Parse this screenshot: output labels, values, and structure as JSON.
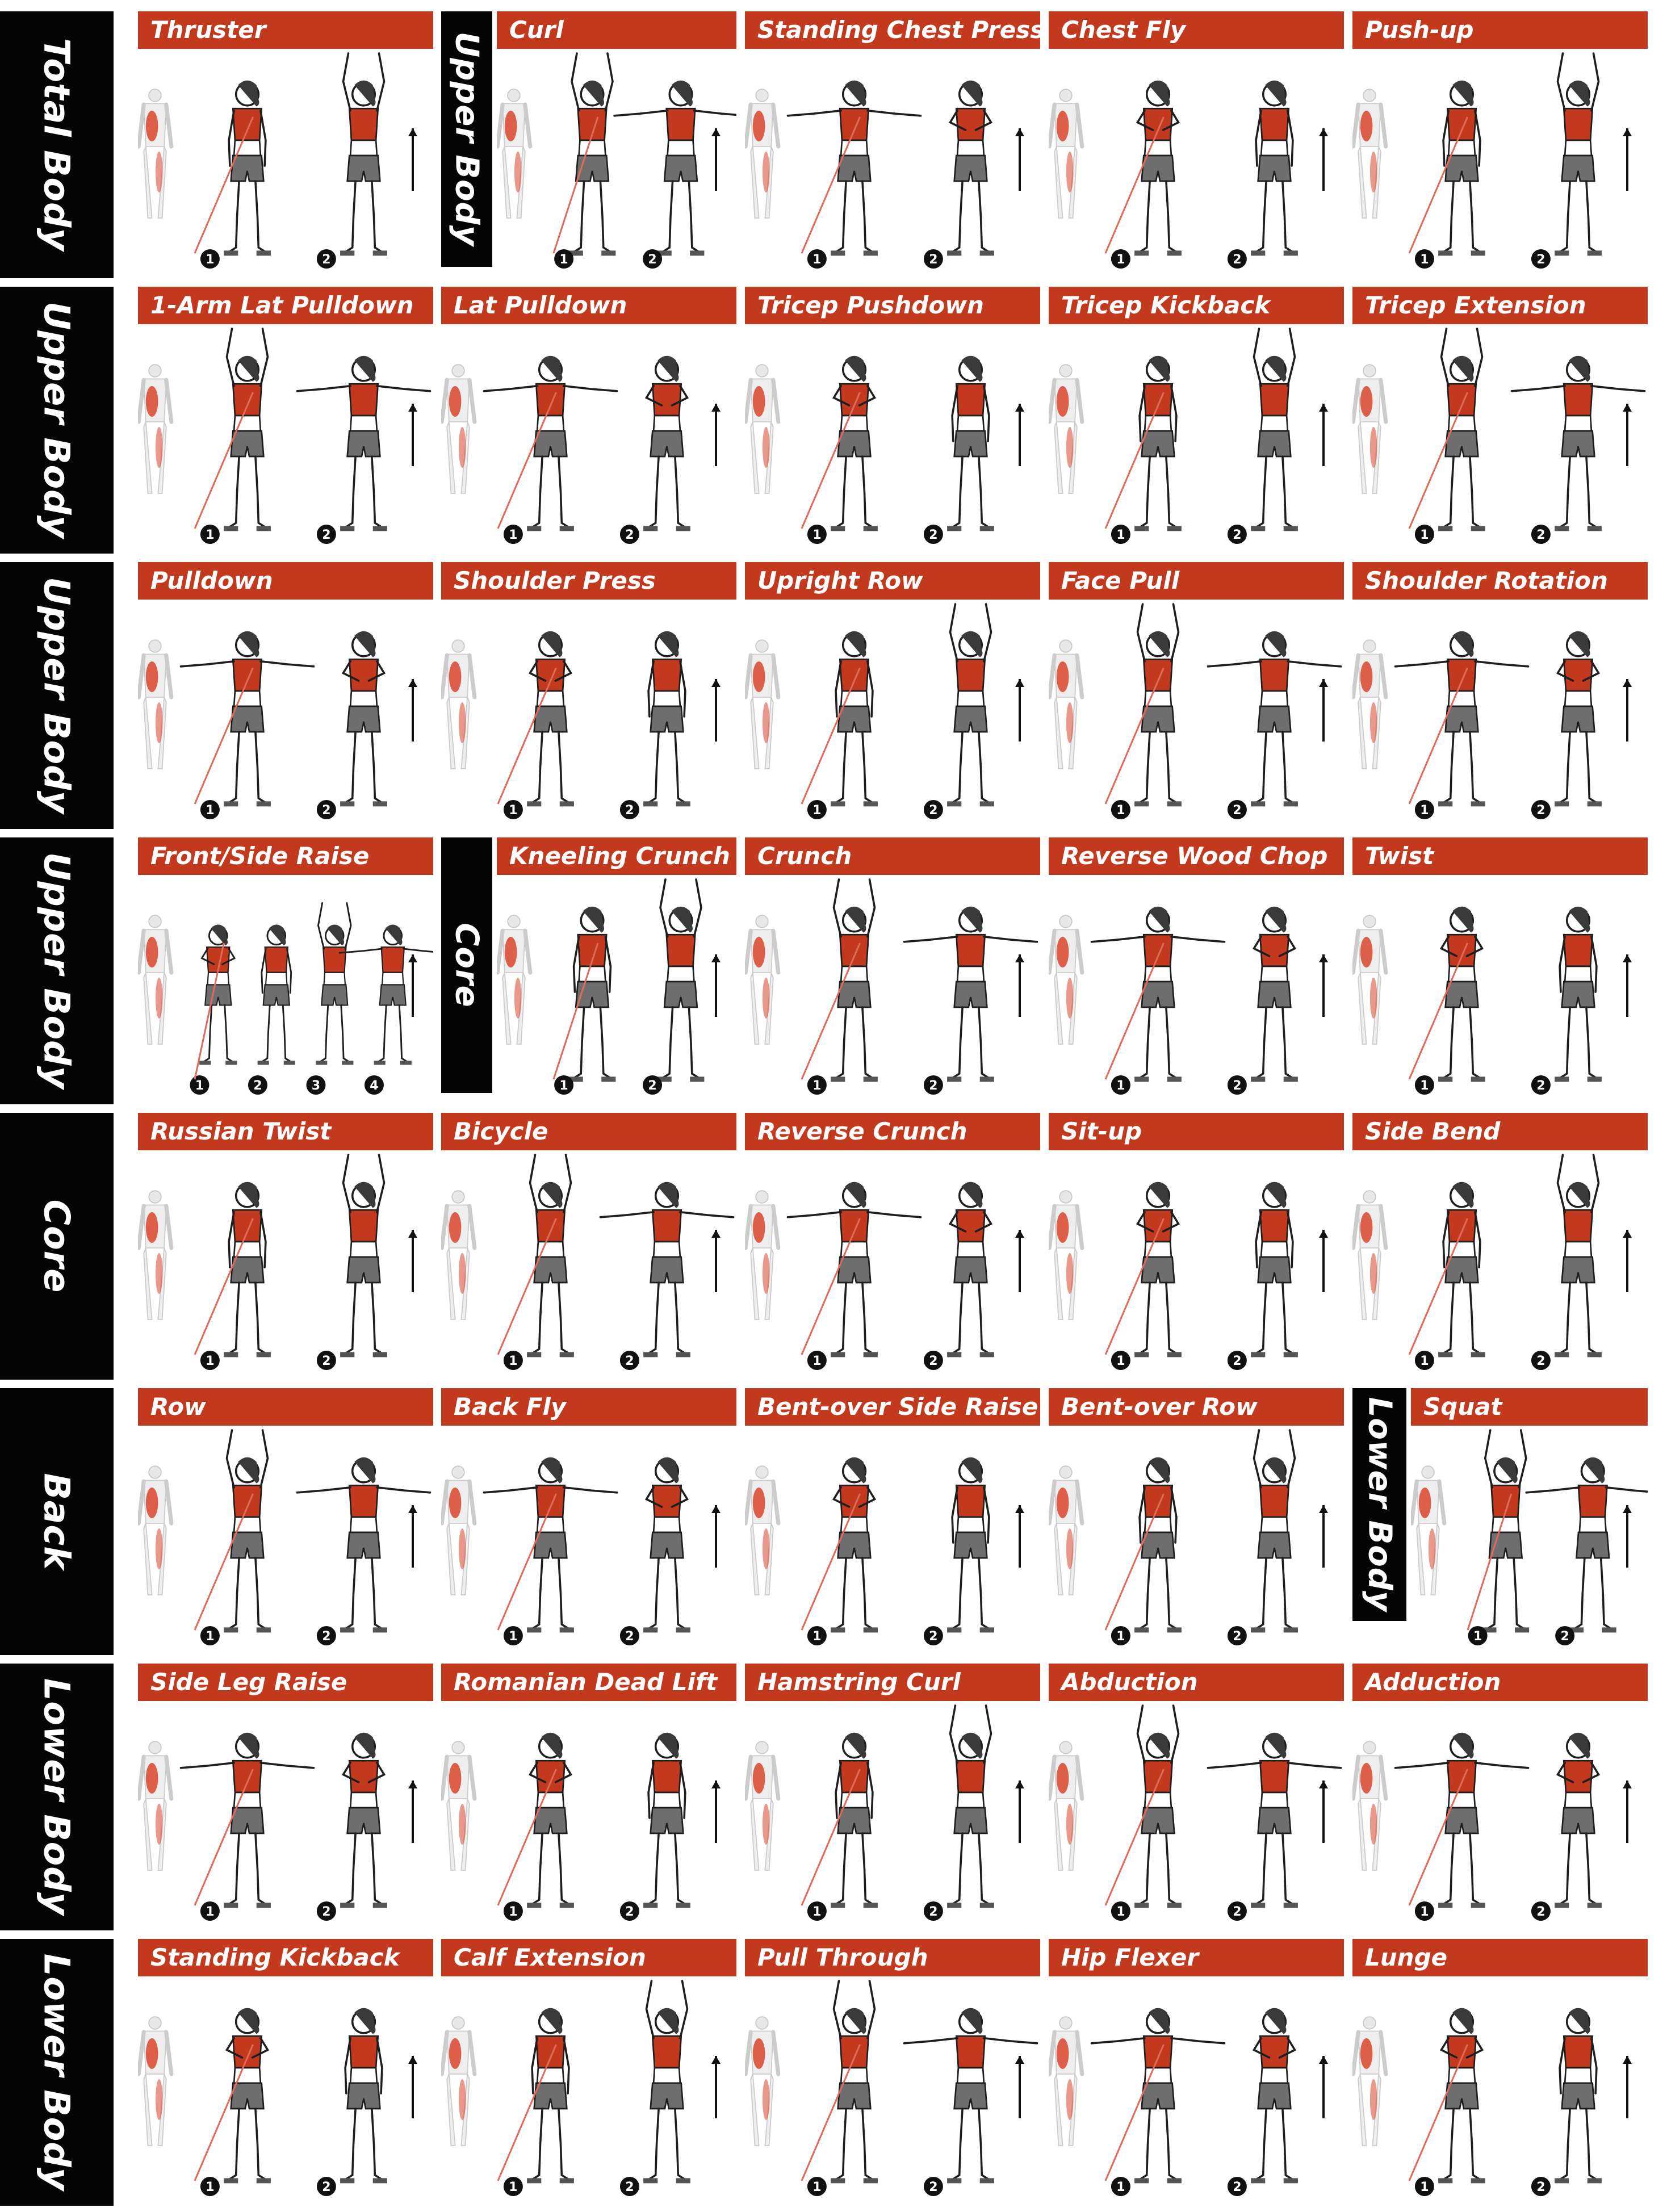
{
  "colors": {
    "header_bar": "#c3391e",
    "label_bg": "#050505",
    "label_text": "#ffffff",
    "muscle_highlight": "#d9442c",
    "band": "#e06a5a",
    "shorts": "#6e6e6e",
    "top": "#c3391e",
    "outline": "#1e1e1e"
  },
  "row_labels": [
    "Total Body",
    "Upper Body",
    "Upper Body",
    "Upper Body",
    "Core",
    "Back",
    "Lower Body",
    "Lower Body"
  ],
  "inline_labels": [
    "Upper Body",
    "Core",
    "Lower Body"
  ],
  "step_markers": [
    "1",
    "2",
    "3",
    "4"
  ],
  "exercises": [
    [
      {
        "name": "Thruster",
        "steps": 2,
        "icon": "squat-to-press-figures"
      },
      {
        "name": "Curl",
        "steps": 2,
        "icon": "biceps-curl-figures"
      },
      {
        "name": "Standing Chest Press",
        "steps": 2,
        "icon": "chest-press-figures"
      },
      {
        "name": "Chest Fly",
        "steps": 2,
        "icon": "chest-fly-figures"
      },
      {
        "name": "Push-up",
        "steps": 2,
        "icon": "push-up-figures"
      }
    ],
    [
      {
        "name": "1-Arm Lat Pulldown",
        "steps": 2,
        "icon": "lat-pulldown-figures"
      },
      {
        "name": "Lat Pulldown",
        "steps": 2,
        "icon": "bent-pulldown-figures"
      },
      {
        "name": "Tricep Pushdown",
        "steps": 2,
        "icon": "tricep-pushdown-figures"
      },
      {
        "name": "Tricep Kickback",
        "steps": 2,
        "icon": "tricep-kickback-figures"
      },
      {
        "name": "Tricep Extension",
        "steps": 2,
        "icon": "tricep-extension-figures"
      }
    ],
    [
      {
        "name": "Pulldown",
        "steps": 2,
        "icon": "straight-arm-pulldown-figures"
      },
      {
        "name": "Shoulder Press",
        "steps": 2,
        "icon": "shoulder-press-figures"
      },
      {
        "name": "Upright Row",
        "steps": 2,
        "icon": "upright-row-figures"
      },
      {
        "name": "Face Pull",
        "steps": 2,
        "icon": "face-pull-figures"
      },
      {
        "name": "Shoulder Rotation",
        "steps": 2,
        "icon": "shoulder-rotation-figures"
      }
    ],
    [
      {
        "name": "Front/Side Raise",
        "steps": 4,
        "icon": "front-side-raise-figures"
      },
      {
        "name": "Kneeling Crunch",
        "steps": 2,
        "icon": "kneeling-crunch-figures"
      },
      {
        "name": "Crunch",
        "steps": 2,
        "icon": "crunch-figures"
      },
      {
        "name": "Reverse Wood Chop",
        "steps": 2,
        "icon": "wood-chop-figures"
      },
      {
        "name": "Twist",
        "steps": 2,
        "icon": "twist-figures"
      }
    ],
    [
      {
        "name": "Russian Twist",
        "steps": 2,
        "icon": "russian-twist-figures"
      },
      {
        "name": "Bicycle",
        "steps": 2,
        "icon": "bicycle-figures"
      },
      {
        "name": "Reverse Crunch",
        "steps": 2,
        "icon": "reverse-crunch-figures"
      },
      {
        "name": "Sit-up",
        "steps": 2,
        "icon": "sit-up-figures"
      },
      {
        "name": "Side Bend",
        "steps": 2,
        "icon": "side-bend-figures"
      }
    ],
    [
      {
        "name": "Row",
        "steps": 2,
        "icon": "seated-row-figures"
      },
      {
        "name": "Back Fly",
        "steps": 2,
        "icon": "back-fly-figures"
      },
      {
        "name": "Bent-over Side Raise",
        "steps": 2,
        "icon": "bent-side-raise-figures"
      },
      {
        "name": "Bent-over Row",
        "steps": 2,
        "icon": "bent-over-row-figures"
      },
      {
        "name": "Squat",
        "steps": 2,
        "icon": "squat-figures"
      }
    ],
    [
      {
        "name": "Side Leg Raise",
        "steps": 2,
        "icon": "side-leg-raise-figures"
      },
      {
        "name": "Romanian Dead Lift",
        "steps": 2,
        "icon": "romanian-deadlift-figures"
      },
      {
        "name": "Hamstring Curl",
        "steps": 2,
        "icon": "hamstring-curl-figures"
      },
      {
        "name": "Abduction",
        "steps": 2,
        "icon": "abduction-figures"
      },
      {
        "name": "Adduction",
        "steps": 2,
        "icon": "adduction-figures"
      }
    ],
    [
      {
        "name": "Standing Kickback",
        "steps": 2,
        "icon": "standing-kickback-figures"
      },
      {
        "name": "Calf Extension",
        "steps": 2,
        "icon": "calf-extension-figures"
      },
      {
        "name": "Pull Through",
        "steps": 2,
        "icon": "pull-through-figures"
      },
      {
        "name": "Hip Flexer",
        "steps": 2,
        "icon": "hip-flexer-figures"
      },
      {
        "name": "Lunge",
        "steps": 2,
        "icon": "lunge-figures"
      }
    ]
  ]
}
